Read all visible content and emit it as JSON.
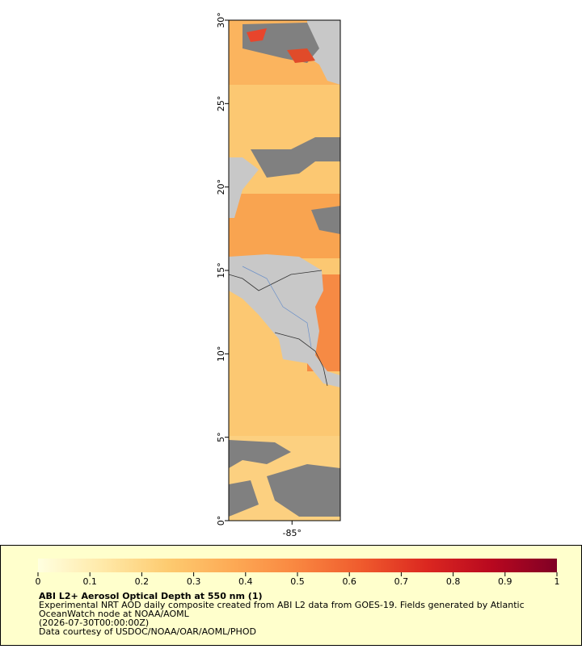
{
  "map": {
    "ylim": [
      0,
      30
    ],
    "yticks": [
      {
        "value": 0,
        "label": "0°"
      },
      {
        "value": 5,
        "label": "5°"
      },
      {
        "value": 10,
        "label": "10°"
      },
      {
        "value": 15,
        "label": "15°"
      },
      {
        "value": 20,
        "label": "20°"
      },
      {
        "value": 25,
        "label": "25°"
      },
      {
        "value": 30,
        "label": "30°"
      }
    ],
    "xlim": [
      -88.8,
      -82.1
    ],
    "xticks": [
      {
        "value": -85,
        "label": "-85°"
      }
    ]
  },
  "legend": {
    "title": "ABI L2+ Aerosol Optical Depth at 550 nm (1)",
    "lines": [
      "Experimental NRT AOD daily composite created from ABI L2 data from GOES-19. Fields generated by Atlantic",
      "OceanWatch node at NOAA/AOML",
      "(2026-07-30T00:00:00Z)",
      "Data courtesy of USDOC/NOAA/OAR/AOML/PHOD"
    ],
    "colorbar": {
      "xlim": [
        0,
        1
      ],
      "ticks": [
        0,
        0.1,
        0.2,
        0.3,
        0.4,
        0.5,
        0.6,
        0.7,
        0.8,
        0.9,
        1
      ],
      "colors": [
        "#ffffe0",
        "#ffe9a8",
        "#fdcb70",
        "#fdaa55",
        "#f98640",
        "#ef5a2d",
        "#db2720",
        "#b8081f",
        "#800025"
      ]
    }
  }
}
